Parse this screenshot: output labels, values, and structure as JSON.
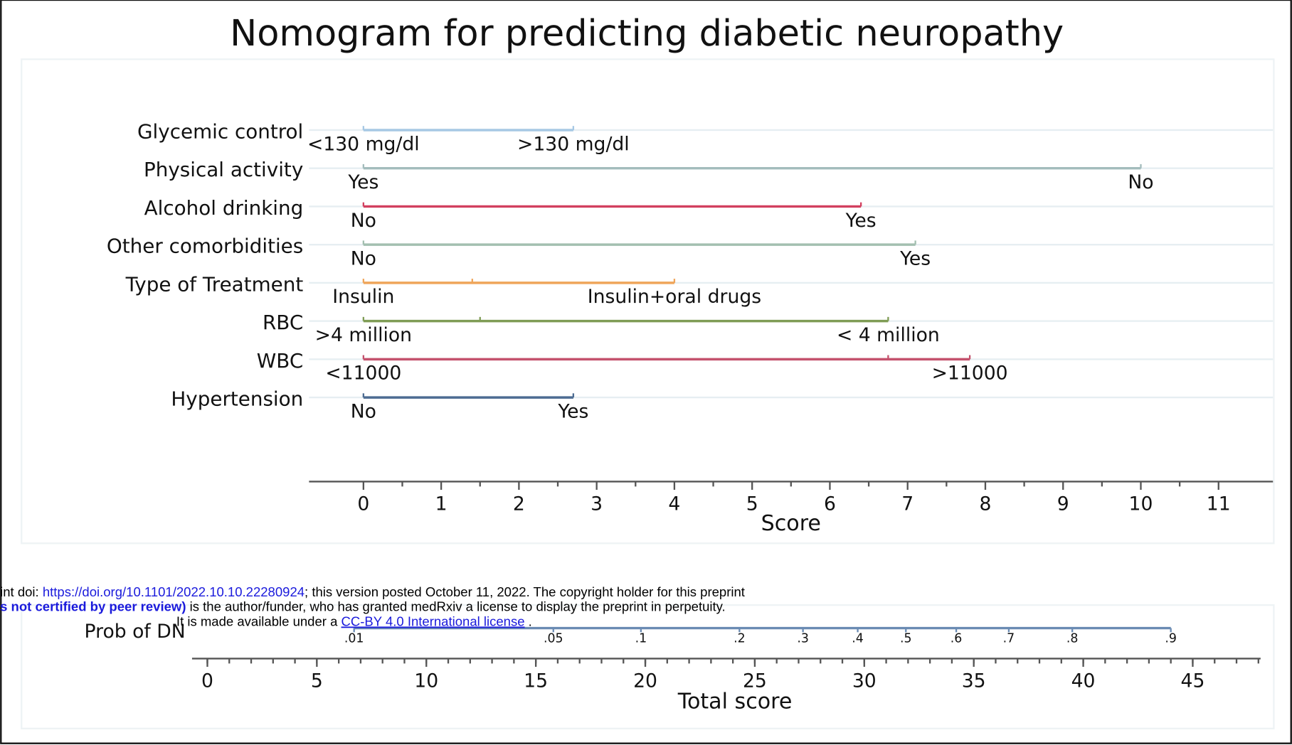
{
  "chart_data": {
    "type": "nomogram",
    "title": "Nomogram for predicting diabetic neuropathy",
    "grid": true,
    "variables": [
      {
        "name": "Glycemic control",
        "color": "#a6c8e4",
        "levels": [
          {
            "label": "<130 mg/dl",
            "value": 0
          },
          {
            "label": ">130 mg/dl",
            "value": 2.7
          }
        ]
      },
      {
        "name": "Physical activity",
        "color": "#a3bcbc",
        "levels": [
          {
            "label": "Yes",
            "value": 0
          },
          {
            "label": "No",
            "value": 10
          }
        ]
      },
      {
        "name": "Alcohol drinking",
        "color": "#d2405f",
        "levels": [
          {
            "label": "No",
            "value": 0
          },
          {
            "label": "Yes",
            "value": 6.4
          }
        ]
      },
      {
        "name": "Other comorbidities",
        "color": "#a3bfb0",
        "levels": [
          {
            "label": "No",
            "value": 0
          },
          {
            "label": "Yes",
            "value": 7.1
          }
        ]
      },
      {
        "name": "Type of Treatment",
        "color": "#efa55a",
        "levels": [
          {
            "label": "Insulin",
            "value": 0
          },
          {
            "label": null,
            "value": 1.4
          },
          {
            "label": "Insulin+oral drugs",
            "value": 4
          }
        ]
      },
      {
        "name": "RBC",
        "color": "#7f9c55",
        "levels": [
          {
            "label": ">4 million",
            "value": 0
          },
          {
            "label": null,
            "value": 1.5
          },
          {
            "label": "< 4 million",
            "value": 6.75
          }
        ]
      },
      {
        "name": "WBC",
        "color": "#c4526d",
        "levels": [
          {
            "label": "<11000",
            "value": 0
          },
          {
            "label": null,
            "value": 6.75
          },
          {
            "label": ">11000",
            "value": 7.8
          }
        ]
      },
      {
        "name": "Hypertension",
        "color": "#4d6c92",
        "levels": [
          {
            "label": "No",
            "value": 0
          },
          {
            "label": "Yes",
            "value": 2.7
          }
        ]
      }
    ],
    "score_axis": {
      "label": "Score",
      "xlim": [
        -0.7,
        11.7
      ],
      "xticks": [
        0,
        1,
        2,
        3,
        4,
        5,
        6,
        7,
        8,
        9,
        10,
        11
      ]
    },
    "probability": {
      "name": "Prob of DN",
      "color": "#6a8bb3",
      "ticks": [
        {
          "value": 0.01,
          "label": ".01",
          "score": 6.7
        },
        {
          "value": 0.05,
          "label": ".05",
          "score": 15.8
        },
        {
          "value": 0.1,
          "label": ".1",
          "score": 19.8
        },
        {
          "value": 0.2,
          "label": ".2",
          "score": 24.3
        },
        {
          "value": 0.3,
          "label": ".3",
          "score": 27.2
        },
        {
          "value": 0.4,
          "label": ".4",
          "score": 29.7
        },
        {
          "value": 0.5,
          "label": ".5",
          "score": 31.9
        },
        {
          "value": 0.6,
          "label": ".6",
          "score": 34.2
        },
        {
          "value": 0.7,
          "label": ".7",
          "score": 36.6
        },
        {
          "value": 0.8,
          "label": ".8",
          "score": 39.5
        },
        {
          "value": 0.9,
          "label": ".9",
          "score": 44
        }
      ]
    },
    "total_axis": {
      "label": "Total score",
      "xlim": [
        -0.7,
        48.1
      ],
      "xticks": [
        0,
        5,
        10,
        15,
        20,
        25,
        30,
        35,
        40,
        45
      ]
    },
    "watermark": {
      "line1": [
        "int doi: ",
        "https://doi.org/10.1101/2022.10.10.22280924",
        "; this version posted October 11, 2022. The copyright holder for this preprint"
      ],
      "line2": [
        "s not certified by peer review)",
        " is the author/funder, who has granted medRxiv a license to display the preprint in perpetuity."
      ],
      "line3": [
        "It is made available under a ",
        "CC-BY 4.0 International license",
        " ."
      ]
    }
  }
}
